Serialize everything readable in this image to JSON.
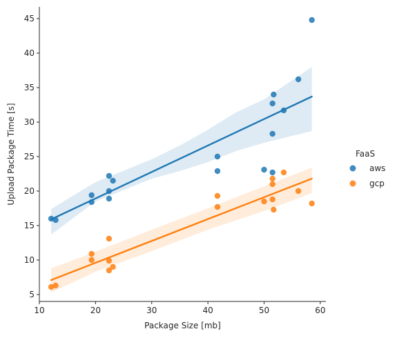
{
  "chart_data": {
    "type": "scatter",
    "xlabel": "Package Size [mb]",
    "ylabel": "Upload Package Time [s]",
    "xlim": [
      10,
      61
    ],
    "ylim": [
      4,
      46.7
    ],
    "xticks": [
      10,
      20,
      30,
      40,
      50,
      60
    ],
    "yticks": [
      5,
      10,
      15,
      20,
      25,
      30,
      35,
      40,
      45
    ],
    "grid": false,
    "legend_position": "right",
    "legend_title": "FaaS",
    "series": [
      {
        "name": "aws",
        "color": "#1f77b4",
        "points": [
          [
            12.1,
            16.0
          ],
          [
            12.9,
            15.8
          ],
          [
            19.3,
            18.4
          ],
          [
            19.3,
            19.4
          ],
          [
            22.4,
            18.9
          ],
          [
            22.4,
            20.0
          ],
          [
            22.4,
            22.2
          ],
          [
            23.1,
            21.5
          ],
          [
            41.7,
            22.9
          ],
          [
            41.7,
            25.0
          ],
          [
            50.0,
            23.1
          ],
          [
            51.5,
            22.7
          ],
          [
            51.5,
            28.3
          ],
          [
            51.5,
            32.7
          ],
          [
            51.7,
            34.0
          ],
          [
            53.5,
            31.7
          ],
          [
            56.1,
            36.2
          ],
          [
            58.5,
            44.8
          ]
        ],
        "fit": {
          "x": [
            12.1,
            58.5
          ],
          "y": [
            15.9,
            33.7
          ]
        },
        "ci": {
          "x": [
            12.1,
            20.0,
            30.0,
            35.0,
            40.0,
            45.0,
            50.0,
            58.5
          ],
          "upper": [
            17.4,
            21.3,
            24.6,
            26.6,
            28.9,
            31.4,
            33.3,
            38.0
          ],
          "lower": [
            13.7,
            18.5,
            21.8,
            22.9,
            24.2,
            25.8,
            27.0,
            28.7
          ]
        }
      },
      {
        "name": "gcp",
        "color": "#ff7f0e",
        "points": [
          [
            12.1,
            6.1
          ],
          [
            12.9,
            6.3
          ],
          [
            19.3,
            10.0
          ],
          [
            19.3,
            10.9
          ],
          [
            22.4,
            8.5
          ],
          [
            22.4,
            9.9
          ],
          [
            22.4,
            13.1
          ],
          [
            23.1,
            9.0
          ],
          [
            41.7,
            17.7
          ],
          [
            41.7,
            19.3
          ],
          [
            50.0,
            18.5
          ],
          [
            51.5,
            18.8
          ],
          [
            51.5,
            21.0
          ],
          [
            51.5,
            21.8
          ],
          [
            51.7,
            17.3
          ],
          [
            53.5,
            22.7
          ],
          [
            56.1,
            20.0
          ],
          [
            58.5,
            18.2
          ]
        ],
        "fit": {
          "x": [
            12.1,
            58.5
          ],
          "y": [
            7.1,
            21.8
          ]
        },
        "ci": {
          "x": [
            12.1,
            20.0,
            30.0,
            40.0,
            50.0,
            58.5
          ],
          "upper": [
            8.8,
            11.2,
            14.4,
            17.5,
            20.7,
            23.4
          ],
          "lower": [
            5.3,
            8.3,
            11.3,
            14.4,
            17.1,
            19.7
          ]
        }
      }
    ]
  }
}
